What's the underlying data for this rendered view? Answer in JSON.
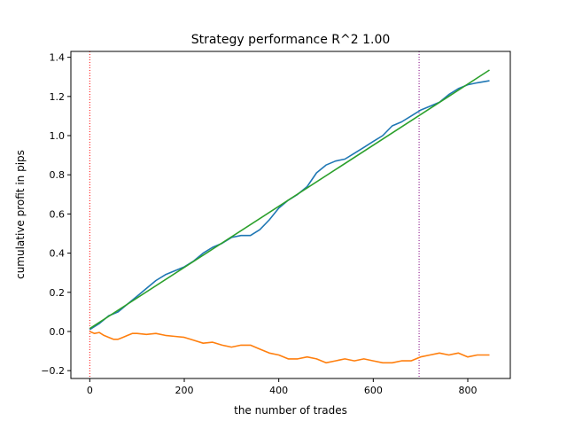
{
  "chart_data": {
    "type": "line",
    "title": "Strategy performance R^2 1.00",
    "xlabel": "the number of trades",
    "ylabel": "cumulative profit in pips",
    "xlim": [
      -40,
      890
    ],
    "ylim": [
      -0.24,
      1.43
    ],
    "xticks": [
      0,
      200,
      400,
      600,
      800
    ],
    "xtick_labels": [
      "0",
      "200",
      "400",
      "600",
      "800"
    ],
    "yticks": [
      -0.2,
      0.0,
      0.2,
      0.4,
      0.6,
      0.8,
      1.0,
      1.2,
      1.4
    ],
    "ytick_labels": [
      "−0.2",
      "0.0",
      "0.2",
      "0.4",
      "0.6",
      "0.8",
      "1.0",
      "1.2",
      "1.4"
    ],
    "grid": false,
    "vlines": [
      {
        "x": 0,
        "color": "#ff0000",
        "style": "dotted"
      },
      {
        "x": 697,
        "color": "#800080",
        "style": "dotted"
      }
    ],
    "series": [
      {
        "color": "#1f77b4",
        "x": [
          0,
          20,
          40,
          60,
          80,
          100,
          120,
          140,
          160,
          180,
          200,
          220,
          240,
          260,
          280,
          300,
          320,
          340,
          360,
          380,
          400,
          420,
          440,
          460,
          480,
          500,
          520,
          540,
          560,
          580,
          600,
          620,
          640,
          660,
          680,
          700,
          720,
          740,
          760,
          780,
          800,
          820,
          846
        ],
        "y": [
          0.01,
          0.04,
          0.08,
          0.1,
          0.14,
          0.18,
          0.22,
          0.26,
          0.29,
          0.31,
          0.33,
          0.36,
          0.4,
          0.43,
          0.45,
          0.48,
          0.49,
          0.49,
          0.52,
          0.57,
          0.63,
          0.67,
          0.7,
          0.74,
          0.81,
          0.85,
          0.87,
          0.88,
          0.91,
          0.94,
          0.97,
          1.0,
          1.05,
          1.07,
          1.1,
          1.13,
          1.15,
          1.17,
          1.21,
          1.24,
          1.26,
          1.27,
          1.28
        ]
      },
      {
        "color": "#ff7f0e",
        "x": [
          0,
          10,
          20,
          30,
          40,
          50,
          60,
          70,
          80,
          90,
          100,
          120,
          140,
          160,
          180,
          200,
          220,
          240,
          260,
          280,
          300,
          320,
          340,
          360,
          380,
          400,
          420,
          440,
          460,
          480,
          500,
          520,
          540,
          560,
          580,
          600,
          620,
          640,
          660,
          680,
          700,
          720,
          740,
          760,
          780,
          800,
          820,
          846
        ],
        "y": [
          0.0,
          -0.01,
          -0.005,
          -0.02,
          -0.03,
          -0.04,
          -0.04,
          -0.03,
          -0.02,
          -0.01,
          -0.01,
          -0.015,
          -0.01,
          -0.02,
          -0.025,
          -0.03,
          -0.045,
          -0.06,
          -0.055,
          -0.07,
          -0.08,
          -0.07,
          -0.07,
          -0.09,
          -0.11,
          -0.12,
          -0.14,
          -0.14,
          -0.13,
          -0.14,
          -0.16,
          -0.15,
          -0.14,
          -0.15,
          -0.14,
          -0.15,
          -0.16,
          -0.16,
          -0.15,
          -0.15,
          -0.13,
          -0.12,
          -0.11,
          -0.12,
          -0.11,
          -0.13,
          -0.12,
          -0.12
        ]
      },
      {
        "color": "#2ca02c",
        "x": [
          0,
          846
        ],
        "y": [
          0.015,
          1.335
        ]
      }
    ]
  }
}
